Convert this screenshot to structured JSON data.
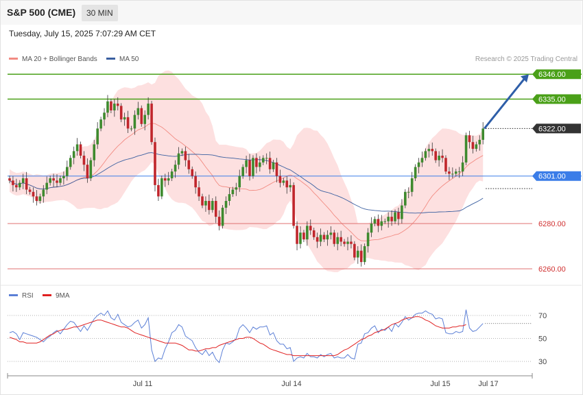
{
  "header": {
    "title": "S&P 500 (CME)",
    "timeframe": "30 MIN",
    "datetime": "Tuesday, July 15, 2025 7:07:29 AM CET"
  },
  "legend": {
    "main": [
      {
        "label": "MA 20 + Bollinger Bands",
        "color": "#f28b82"
      },
      {
        "label": "MA 50",
        "color": "#3a5fa0"
      }
    ],
    "rsi": [
      {
        "label": "RSI",
        "color": "#5b7fd6"
      },
      {
        "label": "9MA",
        "color": "#e02020"
      }
    ]
  },
  "credit": "Research © 2025 Trading Central",
  "colors": {
    "up": "#3e8a2e",
    "down": "#c0262c",
    "bollinger": "#fde0e0",
    "ma20": "#f28b82",
    "ma50": "#3a5fa0",
    "resistance": "#4aa018",
    "pivot": "#3b7de8",
    "support": "#e07070",
    "arrow": "#2e5ea8"
  },
  "chart_data": [
    {
      "type": "candlestick",
      "title": "S&P 500 (CME) 30 MIN",
      "ylim": [
        6252,
        6355
      ],
      "y_ticks": [
        6260.0,
        6280.0
      ],
      "x_ticks": [
        "Jul 11",
        "Jul 14",
        "Jul 15",
        "Jul 17"
      ],
      "levels": [
        {
          "label": "6346.00",
          "value": 6346,
          "kind": "resistance"
        },
        {
          "label": "6335.00",
          "value": 6335,
          "kind": "resistance"
        },
        {
          "label": "6322.00",
          "value": 6322,
          "kind": "last"
        },
        {
          "label": "6301.00",
          "value": 6301,
          "kind": "pivot"
        },
        {
          "label": "6280.00",
          "value": 6280,
          "kind": "support"
        },
        {
          "label": "6260.00",
          "value": 6260,
          "kind": "support"
        }
      ],
      "projection": {
        "from": 6322,
        "to": 6346
      },
      "close": [
        6299,
        6297,
        6296,
        6298,
        6300,
        6295,
        6294,
        6292,
        6290,
        6292,
        6295,
        6298,
        6300,
        6299,
        6298,
        6300,
        6301,
        6305,
        6309,
        6312,
        6315,
        6310,
        6306,
        6300,
        6308,
        6315,
        6322,
        6326,
        6329,
        6334,
        6330,
        6333,
        6332,
        6326,
        6327,
        6322,
        6322,
        6328,
        6331,
        6324,
        6328,
        6333,
        6316,
        6297,
        6292,
        6300,
        6299,
        6300,
        6303,
        6306,
        6311,
        6312,
        6308,
        6304,
        6301,
        6296,
        6292,
        6288,
        6290,
        6286,
        6290,
        6283,
        6279,
        6287,
        6290,
        6293,
        6295,
        6296,
        6301,
        6305,
        6308,
        6301,
        6309,
        6305,
        6307,
        6309,
        6309,
        6304,
        6307,
        6301,
        6298,
        6299,
        6296,
        6297,
        6279,
        6271,
        6276,
        6273,
        6279,
        6277,
        6274,
        6272,
        6275,
        6273,
        6275,
        6276,
        6271,
        6274,
        6272,
        6271,
        6272,
        6271,
        6265,
        6268,
        6263,
        6270,
        6276,
        6280,
        6282,
        6279,
        6281,
        6281,
        6283,
        6281,
        6285,
        6282,
        6288,
        6294,
        6294,
        6300,
        6305,
        6307,
        6309,
        6312,
        6313,
        6312,
        6308,
        6310,
        6309,
        6303,
        6302,
        6302,
        6303,
        6303,
        6307,
        6319,
        6316,
        6313,
        6315,
        6317,
        6322
      ]
    },
    {
      "type": "line",
      "title": "RSI",
      "y_ticks": [
        30,
        50,
        70
      ],
      "series": [
        {
          "name": "RSI",
          "values": [
            55,
            56,
            54,
            49,
            55,
            54,
            53,
            52,
            51,
            49,
            47,
            50,
            52,
            55,
            57,
            54,
            58,
            62,
            65,
            64,
            60,
            56,
            61,
            57,
            62,
            67,
            70,
            72,
            70,
            74,
            68,
            66,
            71,
            64,
            62,
            60,
            61,
            64,
            66,
            59,
            62,
            68,
            40,
            30,
            33,
            32,
            41,
            47,
            55,
            57,
            62,
            60,
            52,
            50,
            48,
            42,
            38,
            36,
            40,
            35,
            38,
            32,
            29,
            40,
            46,
            45,
            47,
            50,
            59,
            62,
            59,
            55,
            60,
            58,
            60,
            60,
            61,
            53,
            55,
            48,
            45,
            45,
            41,
            42,
            30,
            33,
            34,
            33,
            37,
            34,
            34,
            33,
            36,
            34,
            36,
            37,
            33,
            34,
            33,
            33,
            36,
            33,
            32,
            45,
            46,
            54,
            55,
            59,
            61,
            55,
            58,
            57,
            60,
            56,
            63,
            60,
            64,
            69,
            66,
            68,
            71,
            72,
            72,
            74,
            72,
            71,
            67,
            68,
            67,
            55,
            54,
            54,
            56,
            55,
            56,
            75,
            59,
            56,
            57,
            60,
            63
          ]
        },
        {
          "name": "9MA",
          "values": [
            51,
            50,
            49,
            47,
            47,
            46,
            46,
            46,
            46,
            47,
            49,
            51,
            53,
            54,
            56,
            57,
            58,
            58,
            59,
            60,
            60,
            61,
            62,
            63,
            64,
            65,
            66,
            66,
            65,
            64,
            63,
            62,
            61,
            60,
            60,
            59,
            57,
            55,
            54,
            53,
            52,
            51,
            50,
            49,
            48,
            47,
            46,
            46,
            46,
            46,
            45,
            44,
            42,
            40,
            40,
            39,
            39,
            40,
            41,
            41,
            42,
            42,
            44,
            45,
            46,
            47,
            48,
            49,
            50,
            50,
            51,
            51,
            50,
            48,
            46,
            45,
            43,
            41,
            40,
            39,
            38,
            37,
            36,
            36,
            35,
            35,
            35,
            35,
            35,
            35,
            35,
            35,
            35,
            35,
            35,
            35,
            35,
            36,
            38,
            40,
            41,
            43,
            45,
            47,
            49,
            50,
            52,
            53,
            55,
            56,
            57,
            58,
            60,
            62,
            63,
            64,
            66,
            67,
            68,
            68,
            69,
            69,
            68,
            66,
            65,
            63,
            61,
            60,
            59,
            59,
            59,
            60,
            60,
            61,
            61,
            62
          ]
        }
      ]
    }
  ]
}
